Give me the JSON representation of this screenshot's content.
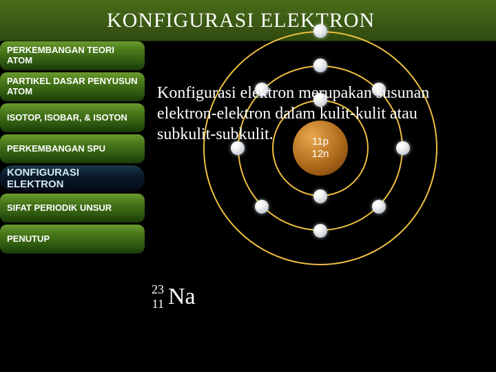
{
  "header": {
    "title": "KONFIGURASI ELEKTRON",
    "fontsize": 30
  },
  "sidebar": {
    "items": [
      {
        "label": "PERKEMBANGAN TEORI ATOM",
        "active": false
      },
      {
        "label": "PARTIKEL DASAR PENYUSUN ATOM",
        "active": false
      },
      {
        "label": "ISOTOP, ISOBAR, & ISOTON",
        "active": false
      },
      {
        "label": "PERKEMBANGAN SPU",
        "active": false
      },
      {
        "label": "KONFIGURASI ELEKTRON",
        "active": true
      },
      {
        "label": "SIFAT PERIODIK UNSUR",
        "active": false
      },
      {
        "label": "PENUTUP",
        "active": false
      }
    ]
  },
  "description": "Konfigurasi elektron merupakan susunan elektron-elektron dalam kulit-kulit atau subkulit-subkulit.",
  "atom": {
    "nucleus": {
      "radius": 40,
      "color": "#b06b1a",
      "protons_label": "11p",
      "neutrons_label": "12n"
    },
    "shell_color": "#f0c040",
    "shell_width": 2,
    "electron_color": "#ffffff",
    "electron_radius": 10,
    "shells": [
      {
        "radius": 70,
        "electrons": 2
      },
      {
        "radius": 120,
        "electrons": 8
      },
      {
        "radius": 170,
        "electrons": 1
      }
    ]
  },
  "element": {
    "mass": "23",
    "atomic_number": "11",
    "symbol": "Na"
  },
  "colors": {
    "bg": "#000000",
    "header_gradient": [
      "#4a6b1a",
      "#2f4a10"
    ],
    "nav_gradient": [
      "#6b9b2f",
      "#1a3a08"
    ],
    "nav_active_gradient": [
      "#1a3a4a",
      "#050a15"
    ]
  }
}
